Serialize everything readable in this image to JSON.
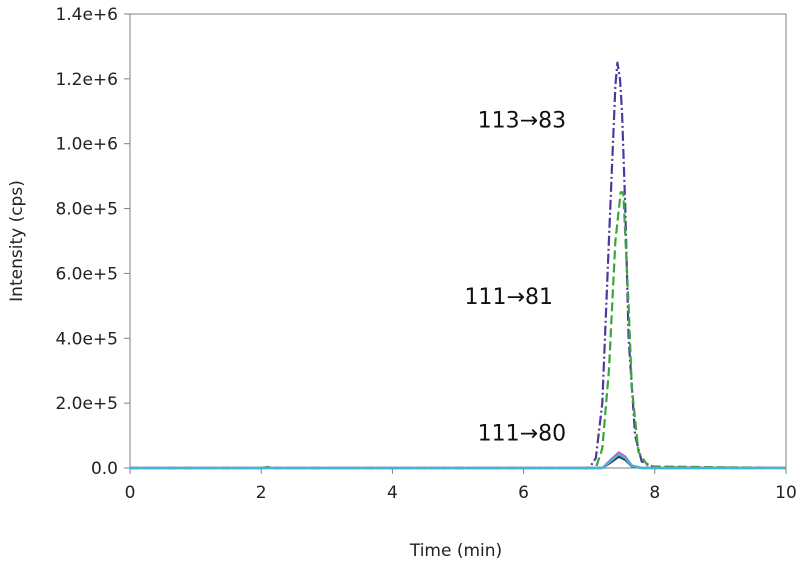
{
  "chart_data": {
    "type": "line",
    "title": "",
    "xlabel": "Time (min)",
    "ylabel": "Intensity (cps)",
    "xlim": [
      0,
      10
    ],
    "ylim": [
      0,
      1400000
    ],
    "x_ticks": [
      0,
      2,
      4,
      6,
      8,
      10
    ],
    "x_tick_labels": [
      "0",
      "2",
      "4",
      "6",
      "8",
      "10"
    ],
    "y_ticks": [
      0,
      200000,
      400000,
      600000,
      800000,
      1000000,
      1200000,
      1400000
    ],
    "y_tick_labels": [
      "0.0",
      "2.0e+5",
      "4.0e+5",
      "6.0e+5",
      "8.0e+5",
      "1.0e+6",
      "1.2e+6",
      "1.4e+6"
    ],
    "grid": false,
    "legend": "none",
    "series": [
      {
        "color": "#4b3a9e",
        "dash": "dashdot",
        "points": [
          [
            0,
            0
          ],
          [
            2.0,
            0
          ],
          [
            2.1,
            2000
          ],
          [
            2.2,
            0
          ],
          [
            7.0,
            0
          ],
          [
            7.1,
            30000
          ],
          [
            7.2,
            200000
          ],
          [
            7.3,
            700000
          ],
          [
            7.4,
            1180000
          ],
          [
            7.43,
            1250000
          ],
          [
            7.47,
            1200000
          ],
          [
            7.5,
            1100000
          ],
          [
            7.55,
            800000
          ],
          [
            7.6,
            400000
          ],
          [
            7.7,
            100000
          ],
          [
            7.8,
            20000
          ],
          [
            8.0,
            2000
          ],
          [
            10,
            0
          ]
        ]
      },
      {
        "color": "#3aa63a",
        "dash": "dash",
        "points": [
          [
            0,
            0
          ],
          [
            2.0,
            0
          ],
          [
            2.1,
            3000
          ],
          [
            2.2,
            0
          ],
          [
            7.1,
            0
          ],
          [
            7.2,
            60000
          ],
          [
            7.3,
            300000
          ],
          [
            7.4,
            700000
          ],
          [
            7.48,
            850000
          ],
          [
            7.52,
            850000
          ],
          [
            7.6,
            500000
          ],
          [
            7.65,
            250000
          ],
          [
            7.75,
            50000
          ],
          [
            7.9,
            5000
          ],
          [
            10,
            0
          ]
        ]
      },
      {
        "color": "#333333",
        "dash": "solid",
        "points": [
          [
            0,
            0
          ],
          [
            7.2,
            0
          ],
          [
            7.35,
            20000
          ],
          [
            7.45,
            35000
          ],
          [
            7.55,
            25000
          ],
          [
            7.65,
            5000
          ],
          [
            7.8,
            0
          ],
          [
            10,
            0
          ]
        ]
      },
      {
        "color": "#c060c0",
        "dash": "solid",
        "points": [
          [
            0,
            0
          ],
          [
            7.2,
            0
          ],
          [
            7.35,
            30000
          ],
          [
            7.45,
            48000
          ],
          [
            7.55,
            35000
          ],
          [
            7.65,
            8000
          ],
          [
            7.8,
            0
          ],
          [
            10,
            0
          ]
        ]
      },
      {
        "color": "#3cb8e0",
        "dash": "solid",
        "points": [
          [
            0,
            0
          ],
          [
            7.2,
            0
          ],
          [
            7.35,
            25000
          ],
          [
            7.45,
            42000
          ],
          [
            7.55,
            30000
          ],
          [
            7.65,
            6000
          ],
          [
            7.8,
            0
          ],
          [
            10,
            0
          ]
        ]
      }
    ],
    "annotations": [
      {
        "text": "113→83",
        "x": 5.3,
        "y": 1050000
      },
      {
        "text": "111→81",
        "x": 5.1,
        "y": 505000
      },
      {
        "text": "111→80",
        "x": 5.3,
        "y": 85000
      }
    ]
  }
}
